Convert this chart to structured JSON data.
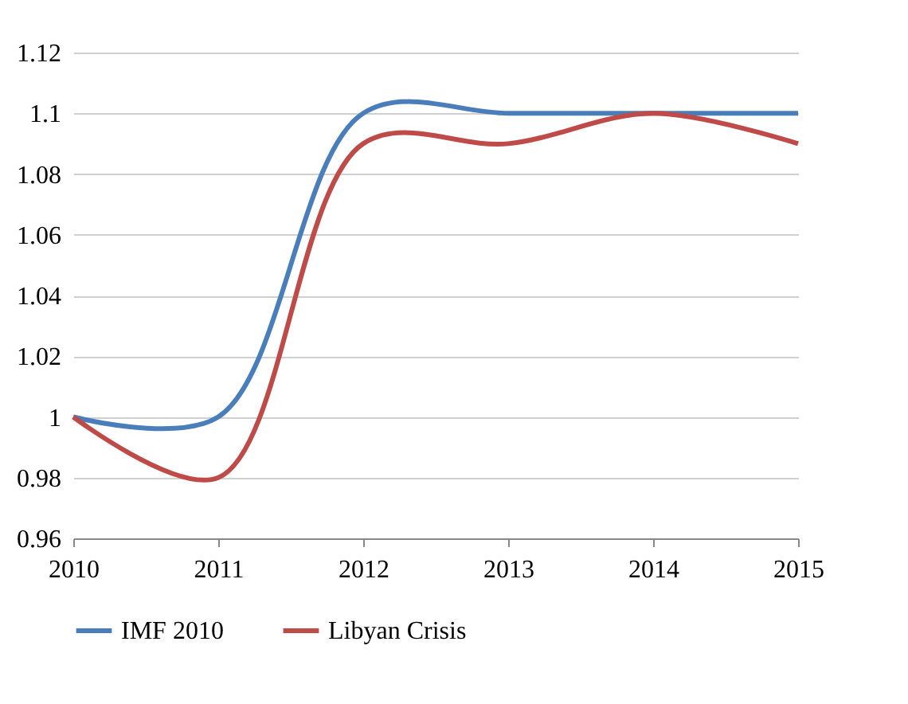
{
  "chart_data": {
    "type": "line",
    "x": [
      2010,
      2011,
      2012,
      2013,
      2014,
      2015
    ],
    "series": [
      {
        "name": "IMF 2010",
        "color": "#4a7ebb",
        "values": [
          1,
          1,
          1.1,
          1.1,
          1.1,
          1.1
        ]
      },
      {
        "name": "Libyan Crisis",
        "color": "#be4b48",
        "values": [
          1,
          0.98,
          1.09,
          1.09,
          1.1,
          1.09
        ]
      }
    ],
    "xlim": [
      2010,
      2015
    ],
    "xticks": [
      2010,
      2011,
      2012,
      2013,
      2014,
      2015
    ],
    "ylim": [
      0.96,
      1.12
    ],
    "yticks": [
      0.96,
      0.98,
      1,
      1.02,
      1.04,
      1.06,
      1.08,
      1.1,
      1.12
    ],
    "grid": "y",
    "legend": "bottom",
    "marker": "none",
    "line_style": "solid"
  }
}
